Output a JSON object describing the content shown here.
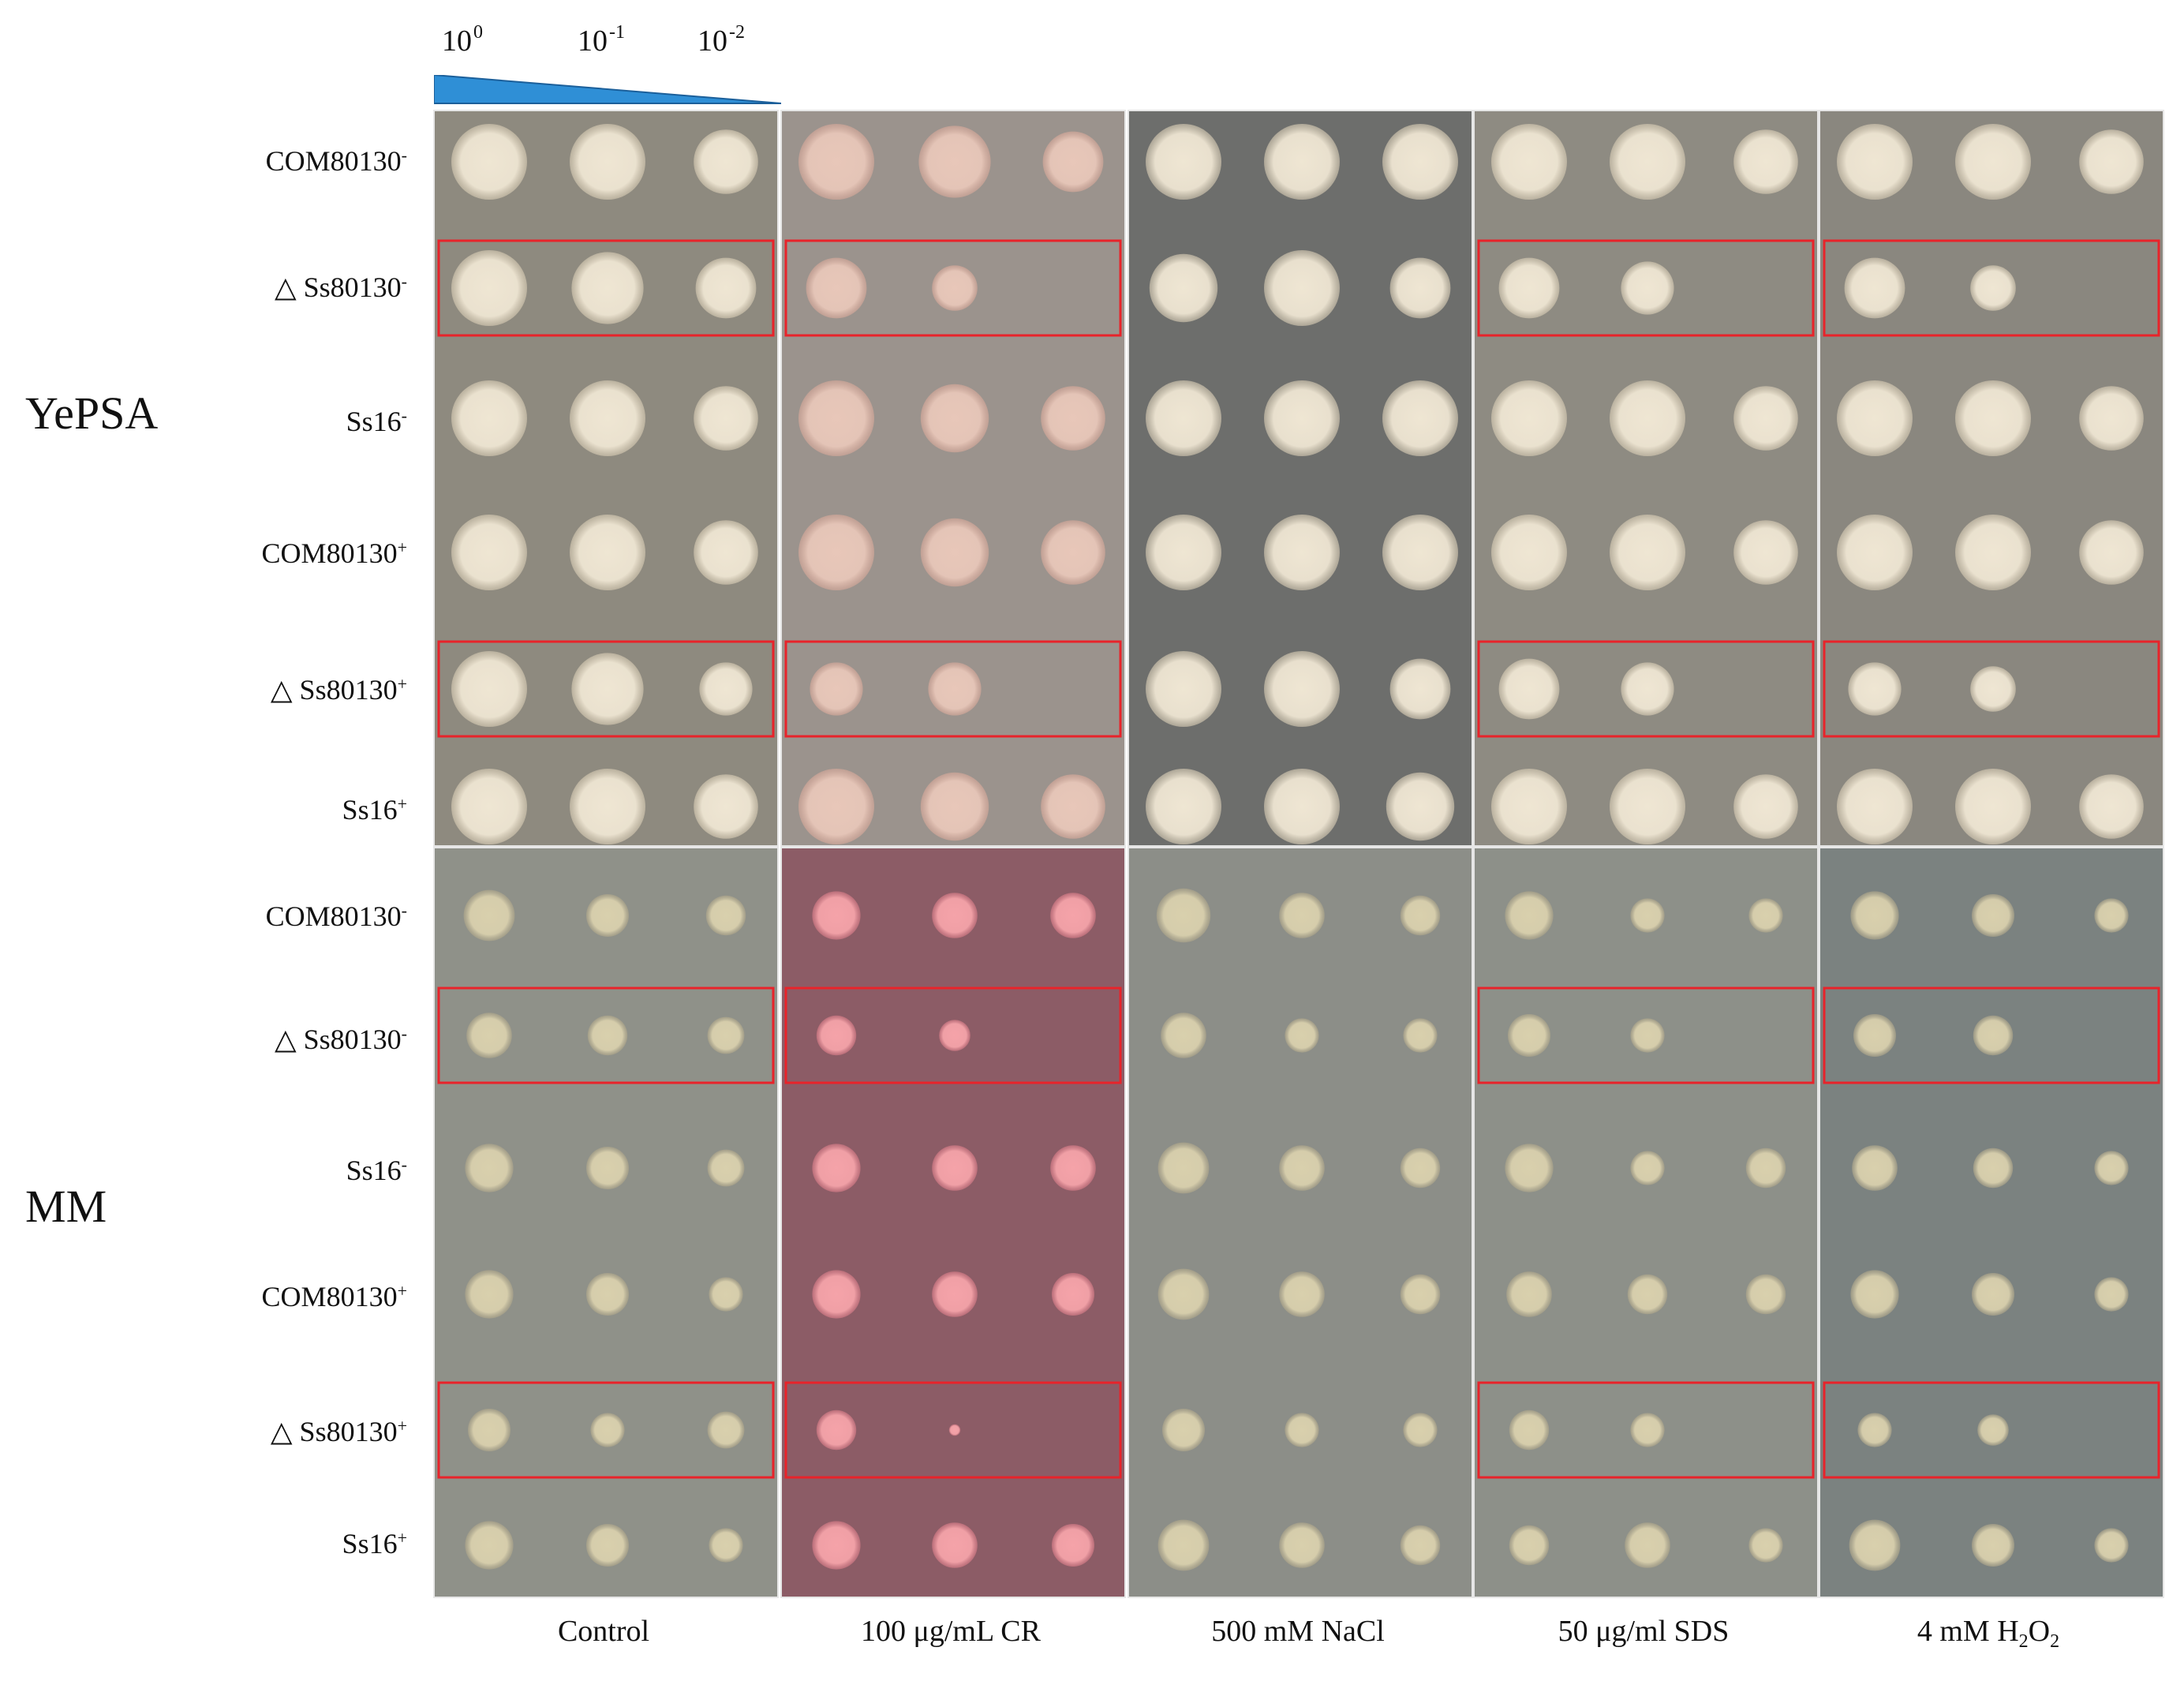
{
  "dilution_labels": [
    {
      "base": "10",
      "exp": "0"
    },
    {
      "base": "10",
      "exp": "-1"
    },
    {
      "base": "10",
      "exp": "-2"
    }
  ],
  "media": [
    {
      "name": "YePSA"
    },
    {
      "name": "MM"
    }
  ],
  "strains": [
    {
      "name": "COM80130",
      "sign": "-"
    },
    {
      "name": "△ Ss80130",
      "sign": "-"
    },
    {
      "name": "Ss16",
      "sign": "-"
    },
    {
      "name": "COM80130",
      "sign": "+"
    },
    {
      "name": "△ Ss80130",
      "sign": "+"
    },
    {
      "name": "Ss16",
      "sign": "+"
    }
  ],
  "conditions": [
    {
      "label": "Control"
    },
    {
      "label": "100 μg/mL CR"
    },
    {
      "label": "500 mM NaCl"
    },
    {
      "label": "50 μg/ml SDS"
    },
    {
      "label": "4 mM H",
      "sub1": "2",
      "mid": "O",
      "sub2": "2"
    }
  ],
  "colors": {
    "yepsa_plate": "#8e8a7f",
    "yepsa_cr_plate": "#9b938d",
    "yepsa_nacl_plate": "#6d6e6c",
    "yepsa_sds_plate": "#8e8b82",
    "yepsa_h2o2_plate": "#8a877f",
    "mm_plate": "#8f9189",
    "mm_cr_plate": "#8c5c66",
    "mm_nacl_plate": "#8c8e88",
    "mm_sds_plate": "#8d9089",
    "mm_h2o2_plate": "#7b8280",
    "yepsa_colony": "#efe6d3",
    "yepsa_cr_colony": "#e8c7b9",
    "mm_colony": "#d9d0ad",
    "mm_cr_colony": "#f5a3a9",
    "highlight_box": "#e8232a",
    "wedge_fill": "#2f8fd6"
  },
  "growth": {
    "YePSA": [
      [
        [
          1,
          1,
          0.85
        ],
        [
          1,
          0.95,
          0.8
        ],
        [
          1,
          1,
          0.85
        ],
        [
          1,
          1,
          0.85
        ],
        [
          1,
          0.95,
          0.7
        ],
        [
          1,
          1,
          0.85
        ]
      ],
      [
        [
          1,
          0.95,
          0.8
        ],
        [
          0.8,
          0.6,
          0
        ],
        [
          1,
          0.9,
          0.85
        ],
        [
          1,
          0.9,
          0.85
        ],
        [
          0.7,
          0.7,
          0
        ],
        [
          1,
          0.9,
          0.85
        ]
      ],
      [
        [
          1,
          1,
          1
        ],
        [
          0.9,
          1,
          0.8
        ],
        [
          1,
          1,
          1
        ],
        [
          1,
          1,
          1
        ],
        [
          1,
          1,
          0.8
        ],
        [
          1,
          1,
          0.9
        ]
      ],
      [
        [
          1,
          1,
          0.85
        ],
        [
          0.8,
          0.7,
          0
        ],
        [
          1,
          1,
          0.85
        ],
        [
          1,
          1,
          0.85
        ],
        [
          0.8,
          0.7,
          0
        ],
        [
          1,
          1,
          0.85
        ]
      ],
      [
        [
          1,
          1,
          0.85
        ],
        [
          0.8,
          0.6,
          0
        ],
        [
          1,
          1,
          0.85
        ],
        [
          1,
          1,
          0.85
        ],
        [
          0.7,
          0.6,
          0
        ],
        [
          1,
          1,
          0.85
        ]
      ]
    ],
    "MM": [
      [
        [
          0.9,
          0.75,
          0.7
        ],
        [
          0.8,
          0.7,
          0.65
        ],
        [
          0.85,
          0.75,
          0.65
        ],
        [
          0.85,
          0.75,
          0.6
        ],
        [
          0.75,
          0.6,
          0.65
        ],
        [
          0.85,
          0.75,
          0.6
        ]
      ],
      [
        [
          0.85,
          0.8,
          0.8
        ],
        [
          0.7,
          0.55,
          0
        ],
        [
          0.85,
          0.8,
          0.8
        ],
        [
          0.85,
          0.8,
          0.75
        ],
        [
          0.7,
          0.2,
          0
        ],
        [
          0.85,
          0.8,
          0.75
        ]
      ],
      [
        [
          0.95,
          0.8,
          0.7
        ],
        [
          0.8,
          0.6,
          0.6
        ],
        [
          0.9,
          0.8,
          0.7
        ],
        [
          0.9,
          0.8,
          0.7
        ],
        [
          0.75,
          0.6,
          0.6
        ],
        [
          0.9,
          0.8,
          0.7
        ]
      ],
      [
        [
          0.85,
          0.6,
          0.6
        ],
        [
          0.75,
          0.6,
          0
        ],
        [
          0.85,
          0.6,
          0.7
        ],
        [
          0.8,
          0.7,
          0.7
        ],
        [
          0.7,
          0.6,
          0
        ],
        [
          0.7,
          0.8,
          0.6
        ]
      ],
      [
        [
          0.85,
          0.75,
          0.6
        ],
        [
          0.75,
          0.7,
          0
        ],
        [
          0.8,
          0.7,
          0.6
        ],
        [
          0.85,
          0.75,
          0.6
        ],
        [
          0.6,
          0.55,
          0
        ],
        [
          0.9,
          0.75,
          0.6
        ]
      ]
    ]
  },
  "highlighted": [
    {
      "medium": "YePSA",
      "strain_index": 1,
      "conditions": [
        0,
        1,
        3,
        4
      ]
    },
    {
      "medium": "YePSA",
      "strain_index": 4,
      "conditions": [
        0,
        1,
        3,
        4
      ]
    },
    {
      "medium": "MM",
      "strain_index": 1,
      "conditions": [
        0,
        1,
        3,
        4
      ]
    },
    {
      "medium": "MM",
      "strain_index": 4,
      "conditions": [
        0,
        1,
        3,
        4
      ]
    }
  ]
}
